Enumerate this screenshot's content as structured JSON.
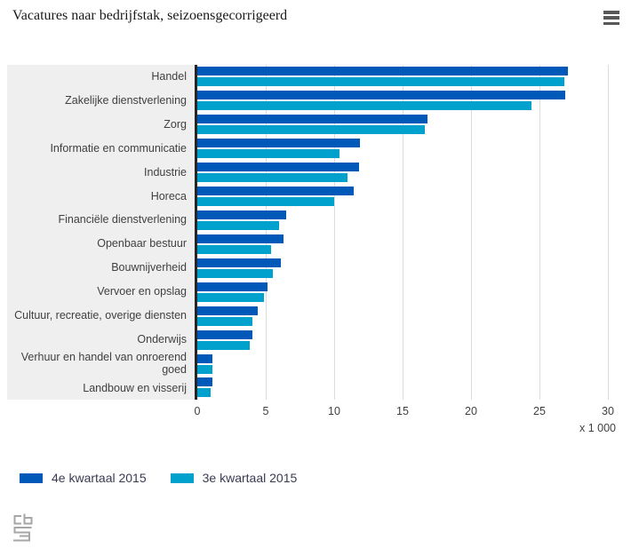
{
  "title": "Vacatures naar bedrijfstak, seizoensgecorrigeerd",
  "ui": {
    "menu_icon": "hamburger-icon",
    "logo_icon": "cbs-logo-icon"
  },
  "colors": {
    "series1": "#0058b8",
    "series2": "#00a1cd",
    "label_panel_bg": "#efefef",
    "axis_line": "#262626",
    "gridline": "#dcdcdc",
    "label_text": "#404040",
    "legend_text": "#3a3a52",
    "title_text": "#1a1a1a",
    "menu_icon_color": "#58585a",
    "logo_gray": "#a6a6a6"
  },
  "chart_data": {
    "type": "bar",
    "orientation": "horizontal",
    "title": "Vacatures naar bedrijfstak, seizoensgecorrigeerd",
    "categories": [
      "Handel",
      "Zakelijke dienstverlening",
      "Zorg",
      "Informatie en communicatie",
      "Industrie",
      "Horeca",
      "Financiële dienstverlening",
      "Openbaar bestuur",
      "Bouwnijverheid",
      "Vervoer en opslag",
      "Cultuur, recreatie, overige diensten",
      "Onderwijs",
      "Verhuur en handel van onroerend goed",
      "Landbouw en visserij"
    ],
    "series": [
      {
        "name": "4e kwartaal 2015",
        "color": "#0058b8",
        "values": [
          27.1,
          26.9,
          16.8,
          11.9,
          11.8,
          11.4,
          6.5,
          6.3,
          6.1,
          5.1,
          4.4,
          4.0,
          1.1,
          1.1
        ]
      },
      {
        "name": "3e kwartaal 2015",
        "color": "#00a1cd",
        "values": [
          26.8,
          24.4,
          16.6,
          10.4,
          11.0,
          10.0,
          6.0,
          5.4,
          5.5,
          4.9,
          4.0,
          3.8,
          1.1,
          1.0
        ]
      }
    ],
    "xlim": [
      0,
      30
    ],
    "xticks": [
      "0",
      "5",
      "10",
      "15",
      "20",
      "25",
      "30"
    ],
    "unit_label": "x 1 000",
    "grid": true,
    "legend_position": "bottom"
  }
}
